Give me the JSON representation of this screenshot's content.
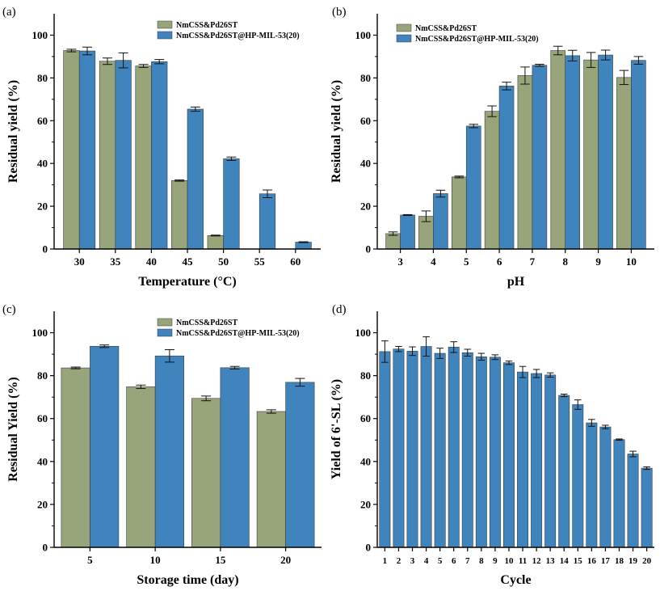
{
  "figure": {
    "colors": {
      "green": "#98A57A",
      "blue": "#3F84BC",
      "bar_edge": "#3a3a3a",
      "axis": "#000000"
    }
  },
  "chart_data": [
    {
      "panel": "(a)",
      "type": "bar",
      "xlabel": "Temperature (°C)",
      "ylabel": "Residual yield (%)",
      "ylim": [
        0,
        110
      ],
      "yticks": [
        0,
        20,
        40,
        60,
        80,
        100
      ],
      "categories": [
        "30",
        "35",
        "40",
        "45",
        "50",
        "55",
        "60"
      ],
      "legend_position": "top-right",
      "series": [
        {
          "name": "NmCSS&Pd26ST",
          "color": "#98A57A",
          "values": [
            92.8,
            87.8,
            85.6,
            32.0,
            6.3,
            null,
            null
          ],
          "errors": [
            0.6,
            1.5,
            0.7,
            0.3,
            0.2,
            null,
            null
          ]
        },
        {
          "name": "NmCSS&Pd26ST@HP-MIL-53(20)",
          "color": "#3F84BC",
          "values": [
            92.6,
            88.2,
            87.6,
            65.4,
            42.2,
            25.8,
            3.2
          ],
          "errors": [
            1.8,
            3.5,
            1.0,
            1.0,
            0.8,
            1.8,
            0.2
          ]
        }
      ]
    },
    {
      "panel": "(b)",
      "type": "bar",
      "xlabel": "pH",
      "ylabel": "Residual yield (%)",
      "ylim": [
        0,
        110
      ],
      "yticks": [
        0,
        20,
        40,
        60,
        80,
        100
      ],
      "categories": [
        "3",
        "4",
        "5",
        "6",
        "7",
        "8",
        "9",
        "10"
      ],
      "legend_position": "top-left",
      "series": [
        {
          "name": "NmCSS&Pd26ST",
          "color": "#98A57A",
          "values": [
            7.2,
            15.3,
            33.7,
            64.4,
            81.1,
            92.8,
            88.4,
            80.2
          ],
          "errors": [
            0.8,
            2.5,
            0.4,
            2.5,
            4.0,
            2.0,
            3.5,
            3.3
          ]
        },
        {
          "name": "NmCSS&Pd26ST@HP-MIL-53(20)",
          "color": "#3F84BC",
          "values": [
            15.9,
            25.9,
            57.5,
            76.2,
            85.9,
            90.4,
            90.7,
            88.2
          ],
          "errors": [
            0.2,
            1.6,
            0.8,
            1.8,
            0.5,
            2.5,
            2.3,
            1.8
          ]
        }
      ]
    },
    {
      "panel": "(c)",
      "type": "bar",
      "xlabel": "Storage time (day)",
      "ylabel": "Residual Yield (%)",
      "ylim": [
        0,
        110
      ],
      "yticks": [
        0,
        20,
        40,
        60,
        80,
        100
      ],
      "categories": [
        "5",
        "10",
        "15",
        "20"
      ],
      "legend_position": "top-right",
      "series": [
        {
          "name": "NmCSS&Pd26ST",
          "color": "#98A57A",
          "values": [
            83.6,
            74.8,
            69.4,
            63.3
          ],
          "errors": [
            0.4,
            0.8,
            1.1,
            0.8
          ]
        },
        {
          "name": "NmCSS&Pd26ST@HP-MIL-53(20)",
          "color": "#3F84BC",
          "values": [
            93.7,
            89.2,
            83.7,
            76.9
          ],
          "errors": [
            0.6,
            2.9,
            0.6,
            1.8
          ]
        }
      ]
    },
    {
      "panel": "(d)",
      "type": "bar",
      "xlabel": "Cycle",
      "ylabel": "Yield of 6'-SL (%)",
      "ylim": [
        0,
        110
      ],
      "yticks": [
        0,
        20,
        40,
        60,
        80,
        100
      ],
      "categories": [
        "1",
        "2",
        "3",
        "4",
        "5",
        "6",
        "7",
        "8",
        "9",
        "10",
        "11",
        "12",
        "13",
        "14",
        "15",
        "16",
        "17",
        "18",
        "19",
        "20"
      ],
      "legend_position": "none",
      "series": [
        {
          "name": "",
          "color": "#3F84BC",
          "values": [
            91.2,
            92.4,
            91.4,
            93.6,
            90.4,
            93.3,
            90.7,
            88.8,
            88.6,
            86.0,
            81.7,
            81.0,
            80.3,
            70.8,
            66.5,
            58.0,
            56.1,
            50.2,
            43.5,
            36.9
          ],
          "errors": [
            5.0,
            1.2,
            2.0,
            4.5,
            2.4,
            2.5,
            1.6,
            1.6,
            1.1,
            0.8,
            2.6,
            1.9,
            1.0,
            0.6,
            2.2,
            1.6,
            0.8,
            0.3,
            1.3,
            0.6
          ]
        }
      ]
    }
  ]
}
